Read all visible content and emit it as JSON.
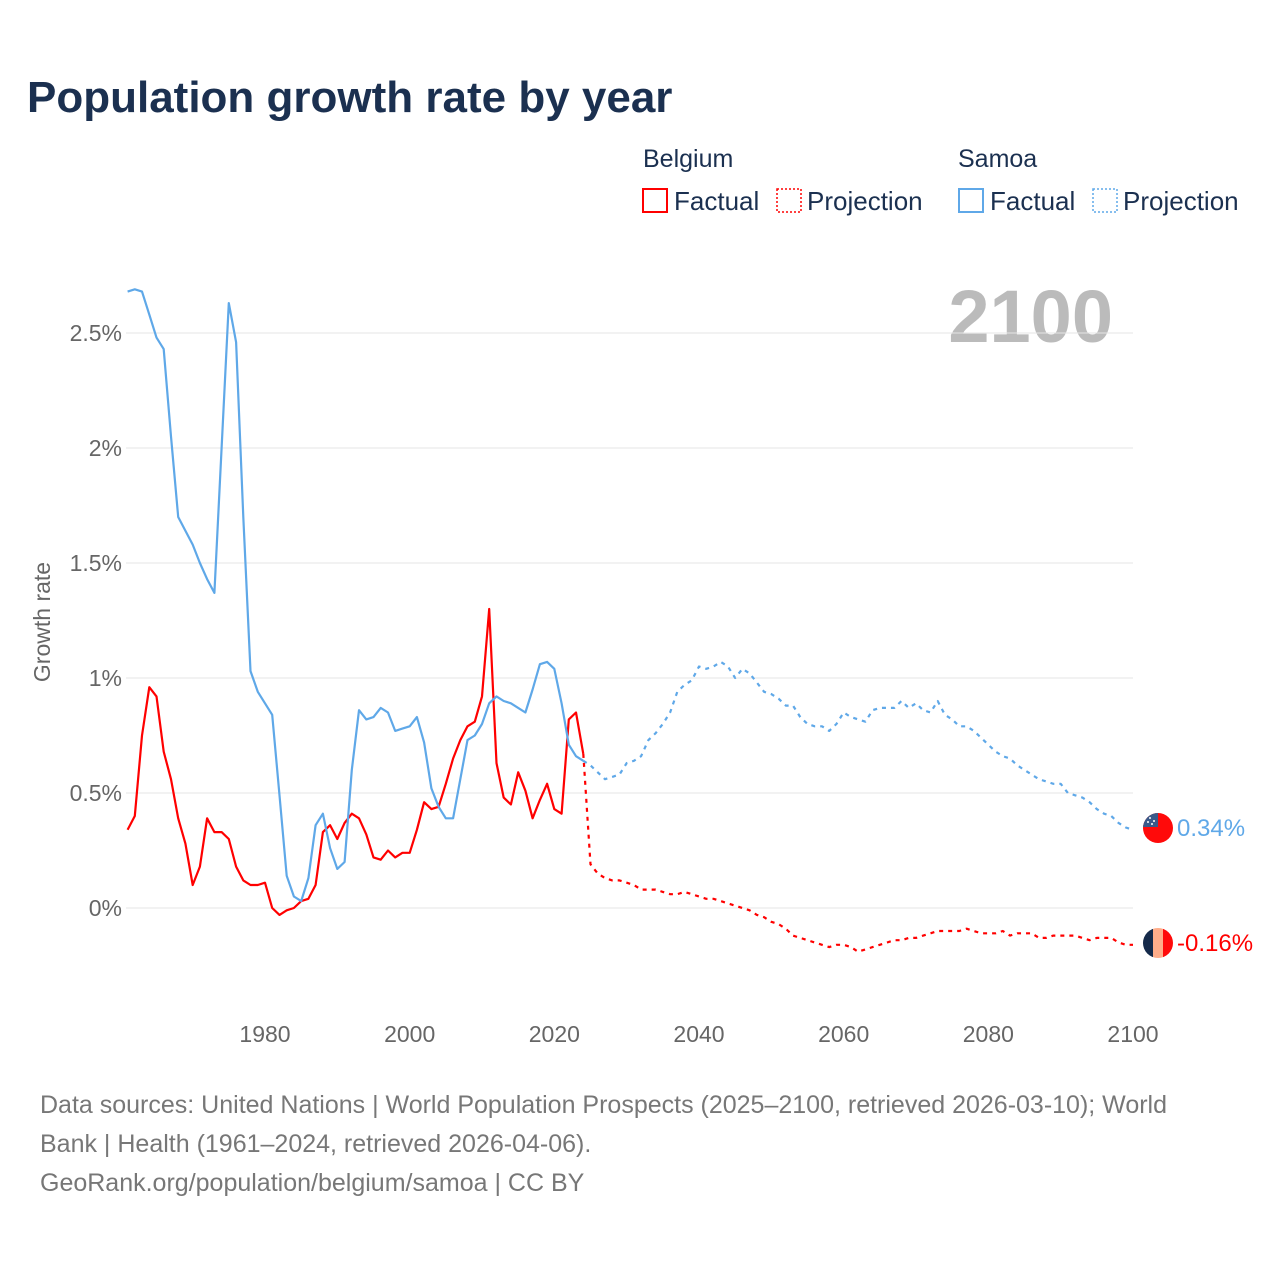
{
  "title": "Population growth rate by year",
  "legend": {
    "groups": [
      {
        "name": "Belgium",
        "factual": "Factual",
        "projection": "Projection",
        "color": "#ff0000"
      },
      {
        "name": "Samoa",
        "factual": "Factual",
        "projection": "Projection",
        "color": "#5fa8e8"
      }
    ]
  },
  "current_year_label": "2100",
  "footer": {
    "line1": "Data sources: United Nations | World Population Prospects (2025–2100, retrieved 2026-03-10); World",
    "line2": "Bank | Health (1961–2024, retrieved 2026-04-06).",
    "line3": "GeoRank.org/population/belgium/samoa | CC BY"
  },
  "chart_data": {
    "type": "line",
    "title": "Population growth rate by year",
    "xlabel": "",
    "ylabel": "Growth rate",
    "xlim": [
      1961,
      2100
    ],
    "ylim": [
      -0.35,
      2.75
    ],
    "x_ticks": [
      1980,
      2000,
      2020,
      2040,
      2060,
      2080,
      2100
    ],
    "x_tick_labels": [
      "1980",
      "2000",
      "2020",
      "2040",
      "2060",
      "2080",
      "2100"
    ],
    "y_ticks": [
      0,
      0.5,
      1,
      1.5,
      2,
      2.5
    ],
    "y_tick_labels": [
      "0%",
      "0.5%",
      "1%",
      "1.5%",
      "2%",
      "2.5%"
    ],
    "grid": true,
    "legend_position": "top-right",
    "series": [
      {
        "name": "Belgium Factual",
        "color": "#ff0000",
        "dashed": false,
        "start_year": 1961,
        "values": [
          0.34,
          0.4,
          0.75,
          0.96,
          0.92,
          0.68,
          0.56,
          0.39,
          0.28,
          0.1,
          0.18,
          0.39,
          0.33,
          0.33,
          0.3,
          0.18,
          0.12,
          0.1,
          0.1,
          0.11,
          0.0,
          -0.03,
          -0.01,
          0.0,
          0.03,
          0.04,
          0.1,
          0.33,
          0.36,
          0.3,
          0.37,
          0.41,
          0.39,
          0.32,
          0.22,
          0.21,
          0.25,
          0.22,
          0.24,
          0.24,
          0.34,
          0.46,
          0.43,
          0.44,
          0.54,
          0.65,
          0.73,
          0.79,
          0.81,
          0.92,
          1.3,
          0.63,
          0.48,
          0.45,
          0.59,
          0.51,
          0.39,
          0.47,
          0.54,
          0.43,
          0.41,
          0.82,
          0.85,
          0.67
        ]
      },
      {
        "name": "Belgium Projection",
        "color": "#ff0000",
        "dashed": true,
        "start_year": 2024,
        "values": [
          0.67,
          0.19,
          0.15,
          0.13,
          0.12,
          0.12,
          0.11,
          0.1,
          0.08,
          0.08,
          0.08,
          0.07,
          0.06,
          0.06,
          0.07,
          0.06,
          0.05,
          0.04,
          0.04,
          0.03,
          0.02,
          0.01,
          0.0,
          -0.01,
          -0.03,
          -0.04,
          -0.06,
          -0.07,
          -0.09,
          -0.12,
          -0.13,
          -0.14,
          -0.15,
          -0.16,
          -0.17,
          -0.16,
          -0.16,
          -0.17,
          -0.19,
          -0.18,
          -0.17,
          -0.16,
          -0.15,
          -0.14,
          -0.14,
          -0.13,
          -0.13,
          -0.12,
          -0.11,
          -0.1,
          -0.1,
          -0.1,
          -0.1,
          -0.09,
          -0.1,
          -0.11,
          -0.11,
          -0.11,
          -0.1,
          -0.12,
          -0.11,
          -0.11,
          -0.11,
          -0.13,
          -0.13,
          -0.12,
          -0.12,
          -0.12,
          -0.12,
          -0.13,
          -0.14,
          -0.13,
          -0.13,
          -0.13,
          -0.15,
          -0.16,
          -0.16
        ]
      },
      {
        "name": "Samoa Factual",
        "color": "#5fa8e8",
        "dashed": false,
        "start_year": 1961,
        "values": [
          2.68,
          2.69,
          2.68,
          2.58,
          2.48,
          2.43,
          2.05,
          1.7,
          1.64,
          1.58,
          1.5,
          1.43,
          1.37,
          2.0,
          2.63,
          2.46,
          1.7,
          1.03,
          0.94,
          0.89,
          0.84,
          0.49,
          0.14,
          0.05,
          0.03,
          0.13,
          0.36,
          0.41,
          0.26,
          0.17,
          0.2,
          0.6,
          0.86,
          0.82,
          0.83,
          0.87,
          0.85,
          0.77,
          0.78,
          0.79,
          0.83,
          0.72,
          0.52,
          0.44,
          0.39,
          0.39,
          0.56,
          0.73,
          0.75,
          0.8,
          0.89,
          0.92,
          0.9,
          0.89,
          0.87,
          0.85,
          0.95,
          1.06,
          1.07,
          1.04,
          0.89,
          0.71,
          0.66,
          0.64
        ]
      },
      {
        "name": "Samoa Projection",
        "color": "#5fa8e8",
        "dashed": true,
        "start_year": 2024,
        "values": [
          0.64,
          0.62,
          0.59,
          0.56,
          0.57,
          0.58,
          0.63,
          0.64,
          0.66,
          0.73,
          0.76,
          0.8,
          0.85,
          0.94,
          0.97,
          0.99,
          1.05,
          1.04,
          1.05,
          1.07,
          1.05,
          1.0,
          1.04,
          1.02,
          0.98,
          0.94,
          0.93,
          0.91,
          0.88,
          0.88,
          0.83,
          0.8,
          0.79,
          0.79,
          0.77,
          0.8,
          0.85,
          0.83,
          0.82,
          0.81,
          0.86,
          0.87,
          0.87,
          0.87,
          0.9,
          0.87,
          0.89,
          0.86,
          0.85,
          0.9,
          0.84,
          0.82,
          0.79,
          0.79,
          0.77,
          0.74,
          0.71,
          0.68,
          0.66,
          0.65,
          0.62,
          0.6,
          0.58,
          0.56,
          0.55,
          0.54,
          0.54,
          0.5,
          0.49,
          0.48,
          0.46,
          0.43,
          0.41,
          0.4,
          0.37,
          0.35,
          0.34
        ]
      }
    ],
    "end_labels": [
      {
        "country": "Samoa",
        "value": 0.34,
        "text": "0.34%",
        "color": "#5fa8e8"
      },
      {
        "country": "Belgium",
        "value": -0.16,
        "text": "-0.16%",
        "color": "#ff0000"
      }
    ]
  }
}
